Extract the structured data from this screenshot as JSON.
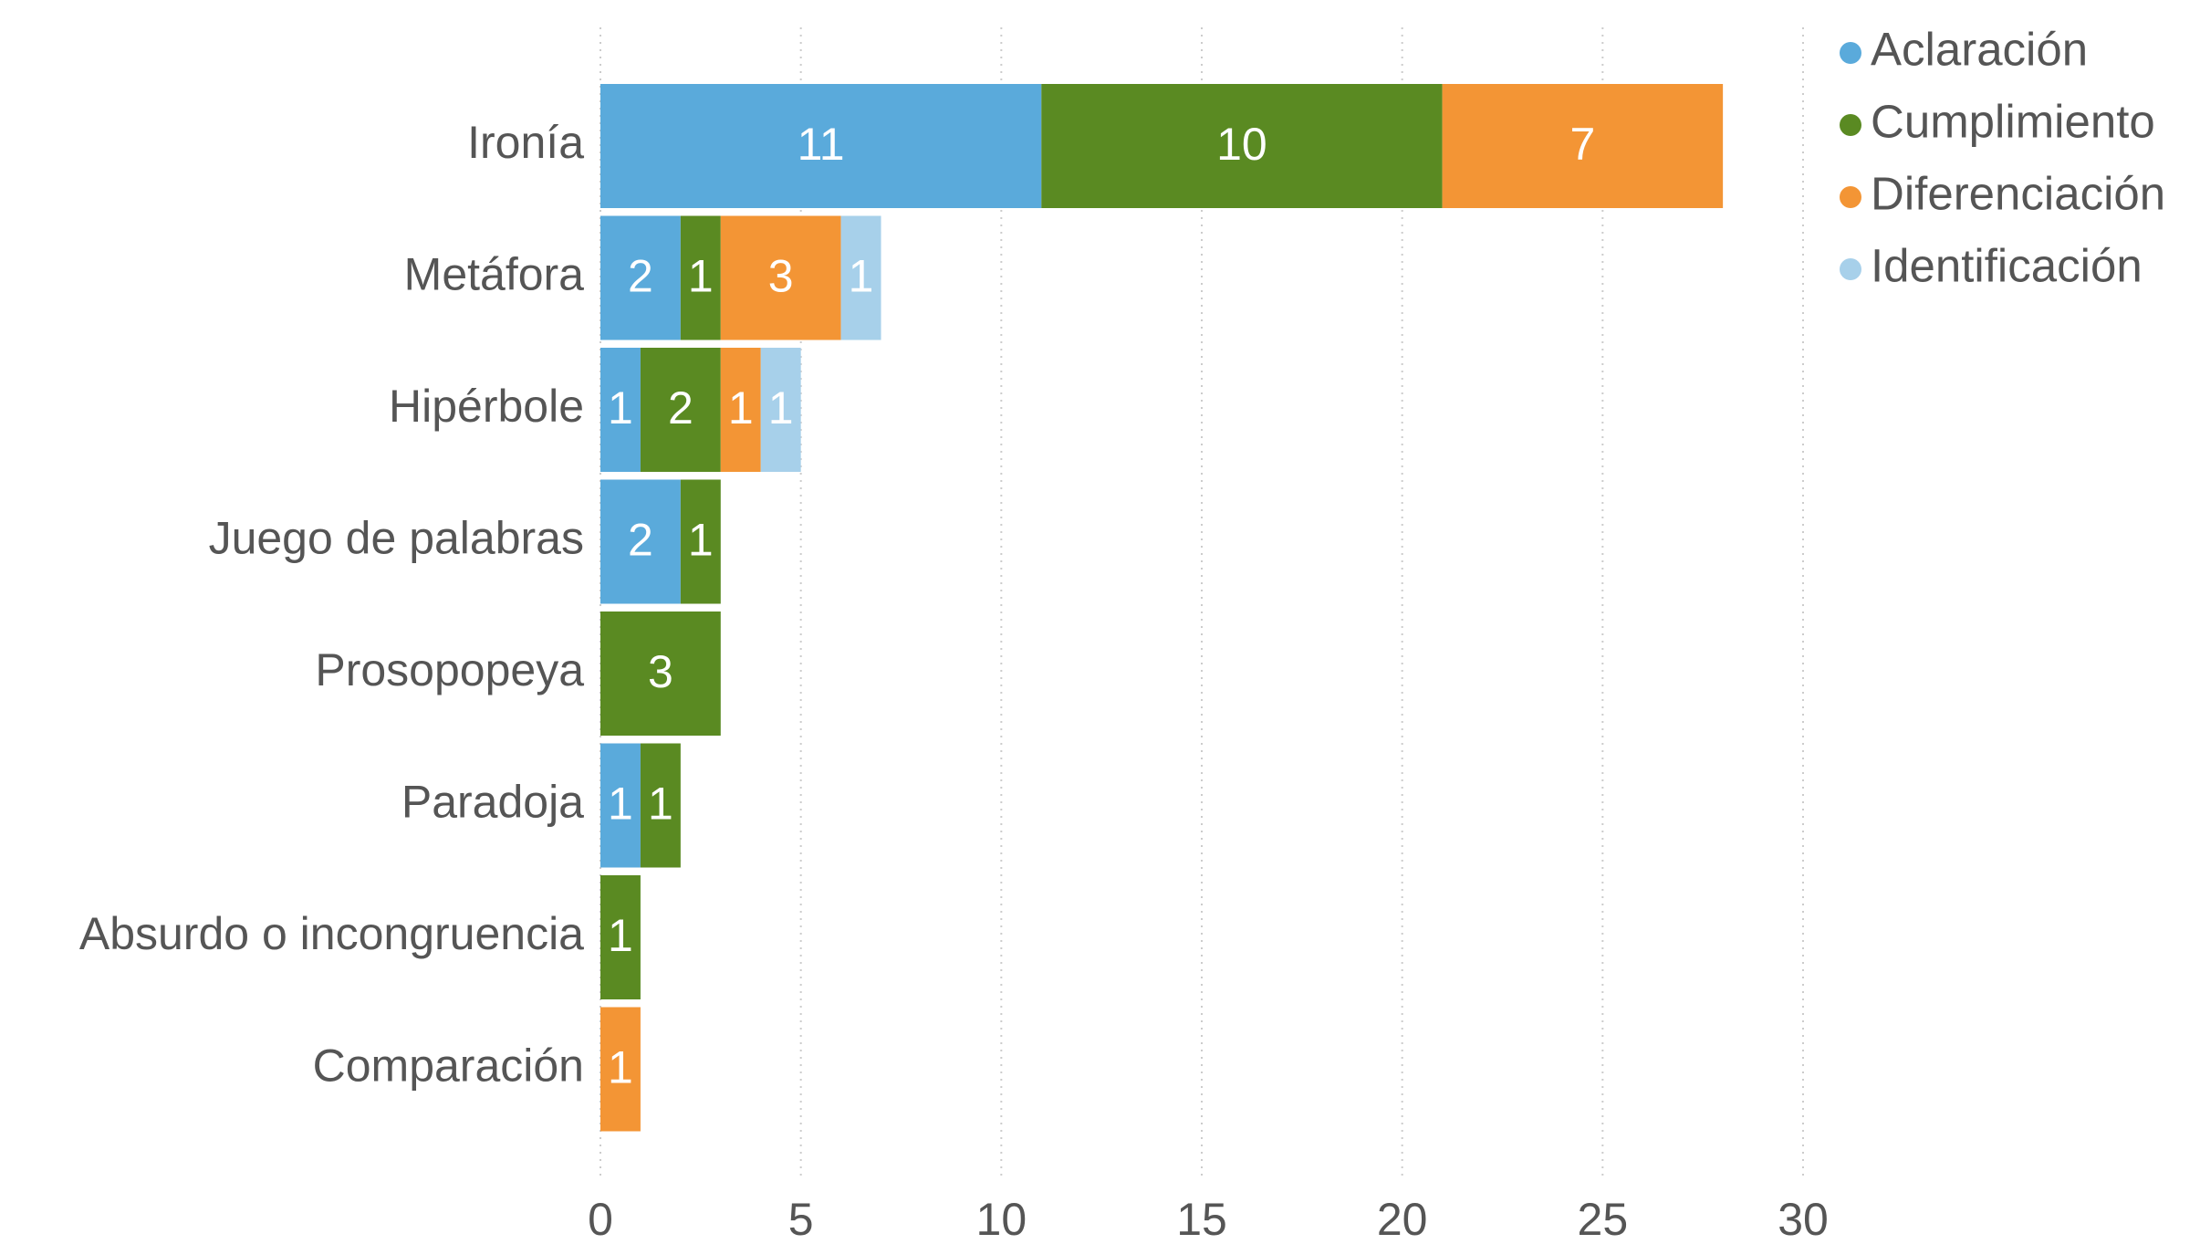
{
  "chart_data": {
    "type": "stacked_barh",
    "categories": [
      "Ironía",
      "Metáfora",
      "Hipérbole",
      "Juego de palabras",
      "Prosopopeya",
      "Paradoja",
      "Absurdo o incongruencia",
      "Comparación"
    ],
    "series": [
      {
        "name": "Aclaración",
        "color": "#5aaadb",
        "values": [
          11,
          2,
          1,
          2,
          0,
          1,
          0,
          0
        ]
      },
      {
        "name": "Cumplimiento",
        "color": "#5a8a22",
        "values": [
          10,
          1,
          2,
          1,
          3,
          1,
          1,
          0
        ]
      },
      {
        "name": "Diferenciación",
        "color": "#f39535",
        "values": [
          7,
          3,
          1,
          0,
          0,
          0,
          0,
          1
        ]
      },
      {
        "name": "Identificación",
        "color": "#a7d0ea",
        "values": [
          0,
          1,
          1,
          0,
          0,
          0,
          0,
          0
        ]
      }
    ],
    "xlim": [
      0,
      30
    ],
    "xticks": [
      0,
      5,
      10,
      15,
      20,
      25,
      30
    ],
    "grid": true,
    "legend": "top-right"
  }
}
